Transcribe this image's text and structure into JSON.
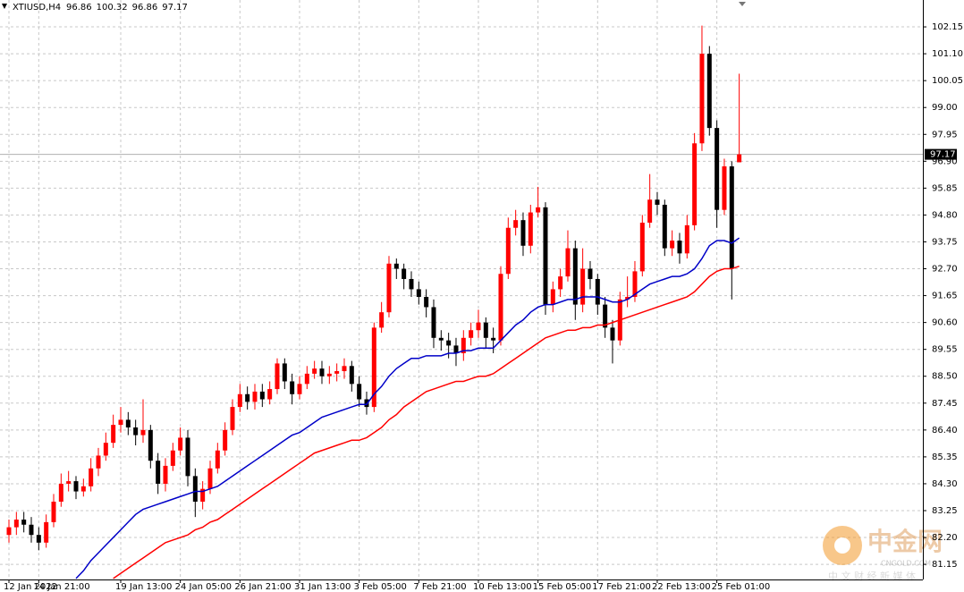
{
  "chart_data": {
    "type": "candlestick",
    "title": "XTIUSD,H4",
    "title_values": [
      96.86,
      100.32,
      96.86,
      97.17
    ],
    "last_price": 97.17,
    "watermark": {
      "brand": "中金网",
      "site": "CNGOLD.COM",
      "slogan": "中 文 财 经 新 媒 体"
    },
    "categories": [
      "12 Jan 2022",
      null,
      null,
      null,
      "14 Jan 21:00",
      null,
      null,
      null,
      null,
      null,
      null,
      null,
      null,
      null,
      null,
      "19 Jan 13:00",
      null,
      null,
      null,
      null,
      null,
      null,
      null,
      "24 Jan 05:00",
      null,
      null,
      null,
      null,
      null,
      null,
      null,
      "26 Jan 21:00",
      null,
      null,
      null,
      null,
      null,
      null,
      null,
      "31 Jan 13:00",
      null,
      null,
      null,
      null,
      null,
      null,
      null,
      "3 Feb 05:00",
      null,
      null,
      null,
      null,
      null,
      null,
      null,
      "7 Feb 21:00",
      null,
      null,
      null,
      null,
      null,
      null,
      null,
      "10 Feb 13:00",
      null,
      null,
      null,
      null,
      null,
      null,
      null,
      "15 Feb 05:00",
      null,
      null,
      null,
      null,
      null,
      null,
      null,
      "17 Feb 21:00",
      null,
      null,
      null,
      null,
      null,
      null,
      null,
      "22 Feb 13:00",
      null,
      null,
      null,
      null,
      null,
      null,
      null,
      "25 Feb 01:00",
      null,
      null,
      null
    ],
    "open": [
      82.3,
      82.6,
      82.9,
      82.7,
      82.3,
      82.0,
      82.8,
      83.6,
      84.3,
      84.4,
      84.0,
      84.2,
      84.9,
      85.4,
      85.9,
      86.6,
      86.8,
      86.5,
      86.2,
      86.4,
      85.2,
      84.3,
      85.0,
      85.6,
      86.1,
      84.6,
      83.6,
      84.1,
      84.9,
      85.6,
      86.4,
      87.3,
      87.8,
      87.5,
      87.9,
      87.6,
      88.0,
      89.0,
      88.3,
      87.8,
      88.2,
      88.6,
      88.8,
      88.5,
      88.6,
      88.7,
      88.9,
      88.2,
      87.6,
      87.3,
      90.4,
      91.0,
      92.9,
      92.7,
      92.3,
      91.9,
      91.6,
      91.2,
      90.0,
      89.9,
      89.7,
      89.4,
      90.0,
      90.3,
      90.6,
      90.0,
      89.9,
      92.5,
      94.3,
      94.6,
      93.6,
      94.9,
      95.1,
      91.3,
      91.9,
      92.4,
      93.5,
      91.3,
      92.7,
      92.3,
      91.3,
      90.4,
      89.9,
      91.5,
      91.6,
      92.6,
      94.5,
      95.4,
      95.2,
      93.5,
      93.8,
      93.3,
      94.4,
      97.6,
      101.1,
      98.2,
      95.0,
      96.7,
      96.86
    ],
    "high": [
      82.9,
      83.2,
      83.2,
      83.0,
      82.6,
      83.1,
      83.9,
      84.7,
      84.8,
      84.6,
      84.5,
      85.3,
      85.7,
      86.3,
      87.0,
      87.3,
      87.1,
      86.8,
      87.6,
      86.6,
      85.5,
      85.3,
      85.9,
      86.5,
      86.4,
      84.9,
      84.4,
      85.2,
      85.9,
      86.7,
      87.6,
      88.2,
      88.1,
      88.2,
      88.2,
      88.3,
      89.2,
      89.2,
      88.6,
      88.5,
      88.9,
      89.1,
      89.1,
      88.9,
      89.0,
      89.2,
      89.1,
      88.5,
      87.9,
      90.6,
      91.4,
      93.2,
      93.1,
      92.9,
      92.6,
      92.2,
      91.9,
      91.5,
      90.3,
      90.2,
      90.0,
      90.3,
      90.6,
      91.1,
      90.8,
      90.4,
      92.8,
      94.7,
      95.0,
      94.9,
      95.2,
      95.9,
      95.3,
      92.2,
      92.7,
      94.2,
      93.8,
      93.5,
      93.0,
      92.5,
      91.6,
      90.7,
      91.8,
      92.4,
      93.0,
      94.8,
      96.4,
      95.7,
      95.4,
      94.2,
      94.1,
      94.8,
      98.0,
      102.2,
      101.4,
      98.5,
      97.0,
      96.9,
      100.32
    ],
    "low": [
      82.0,
      82.3,
      82.4,
      82.0,
      81.7,
      81.8,
      82.6,
      83.4,
      84.0,
      83.7,
      83.8,
      84.0,
      84.6,
      85.2,
      85.7,
      86.3,
      86.2,
      85.8,
      85.9,
      84.9,
      83.9,
      84.0,
      84.8,
      85.4,
      84.2,
      83.0,
      83.3,
      83.9,
      84.7,
      85.4,
      86.2,
      87.1,
      87.2,
      87.2,
      87.3,
      87.4,
      87.8,
      88.0,
      87.4,
      87.6,
      88.0,
      88.4,
      88.2,
      88.2,
      88.3,
      88.4,
      87.9,
      87.3,
      87.0,
      87.1,
      90.2,
      90.8,
      92.3,
      91.9,
      91.6,
      91.3,
      90.8,
      89.6,
      89.5,
      89.2,
      88.9,
      89.1,
      89.7,
      90.0,
      89.6,
      89.4,
      89.7,
      92.3,
      94.0,
      93.2,
      93.3,
      94.7,
      90.9,
      91.0,
      91.6,
      92.2,
      90.7,
      91.0,
      91.9,
      90.9,
      90.0,
      89.0,
      89.7,
      91.2,
      91.4,
      92.4,
      94.3,
      94.8,
      93.2,
      93.2,
      92.9,
      93.1,
      94.2,
      97.3,
      97.9,
      94.3,
      94.8,
      91.5,
      96.86
    ],
    "close": [
      82.6,
      82.9,
      82.7,
      82.3,
      82.0,
      82.8,
      83.6,
      84.3,
      84.4,
      84.0,
      84.2,
      84.9,
      85.4,
      85.9,
      86.6,
      86.8,
      86.5,
      86.2,
      86.4,
      85.2,
      84.3,
      85.0,
      85.6,
      86.1,
      84.6,
      83.6,
      84.1,
      84.9,
      85.6,
      86.4,
      87.3,
      87.8,
      87.5,
      87.9,
      87.6,
      88.0,
      89.0,
      88.3,
      87.8,
      88.2,
      88.6,
      88.8,
      88.5,
      88.6,
      88.7,
      88.9,
      88.2,
      87.6,
      87.3,
      90.4,
      91.0,
      92.9,
      92.7,
      92.3,
      91.9,
      91.6,
      91.2,
      90.0,
      89.9,
      89.7,
      89.4,
      90.0,
      90.3,
      90.6,
      90.0,
      89.9,
      92.5,
      94.3,
      94.6,
      93.6,
      94.9,
      95.1,
      91.3,
      91.9,
      92.4,
      93.5,
      91.3,
      92.7,
      92.3,
      91.3,
      90.4,
      89.9,
      91.5,
      91.6,
      92.6,
      94.5,
      95.4,
      95.2,
      93.5,
      93.8,
      93.3,
      94.4,
      97.6,
      101.1,
      98.2,
      95.0,
      96.7,
      92.7,
      97.17
    ],
    "up_color": "#ff0000",
    "down_color": "#000000",
    "series": [
      {
        "color": "#0000c8",
        "values": [
          null,
          null,
          null,
          null,
          null,
          null,
          null,
          null,
          null,
          80.6,
          80.9,
          81.3,
          81.6,
          81.9,
          82.2,
          82.5,
          82.8,
          83.1,
          83.3,
          83.4,
          83.5,
          83.6,
          83.7,
          83.8,
          83.9,
          84.0,
          84.0,
          84.1,
          84.2,
          84.4,
          84.6,
          84.8,
          85.0,
          85.2,
          85.4,
          85.6,
          85.8,
          86.0,
          86.2,
          86.3,
          86.5,
          86.7,
          86.9,
          87.0,
          87.1,
          87.2,
          87.3,
          87.4,
          87.4,
          87.8,
          88.1,
          88.5,
          88.8,
          89.0,
          89.2,
          89.2,
          89.3,
          89.3,
          89.3,
          89.4,
          89.4,
          89.5,
          89.5,
          89.6,
          89.6,
          89.6,
          89.9,
          90.2,
          90.5,
          90.7,
          91.0,
          91.2,
          91.3,
          91.3,
          91.4,
          91.5,
          91.5,
          91.6,
          91.6,
          91.6,
          91.5,
          91.4,
          91.4,
          91.5,
          91.7,
          91.9,
          92.1,
          92.2,
          92.3,
          92.4,
          92.4,
          92.5,
          92.7,
          93.1,
          93.6,
          93.8,
          93.8,
          93.7,
          93.9
        ]
      },
      {
        "color": "#ff0000",
        "values": [
          null,
          null,
          null,
          null,
          null,
          null,
          null,
          null,
          null,
          null,
          null,
          null,
          null,
          null,
          80.6,
          80.8,
          81.0,
          81.2,
          81.4,
          81.6,
          81.8,
          82.0,
          82.1,
          82.2,
          82.3,
          82.5,
          82.6,
          82.8,
          82.9,
          83.1,
          83.3,
          83.5,
          83.7,
          83.9,
          84.1,
          84.3,
          84.5,
          84.7,
          84.9,
          85.1,
          85.3,
          85.5,
          85.6,
          85.7,
          85.8,
          85.9,
          86.0,
          86.0,
          86.1,
          86.3,
          86.5,
          86.8,
          87.0,
          87.3,
          87.5,
          87.7,
          87.9,
          88.0,
          88.1,
          88.2,
          88.3,
          88.3,
          88.4,
          88.5,
          88.5,
          88.6,
          88.8,
          89.0,
          89.2,
          89.4,
          89.6,
          89.8,
          90.0,
          90.1,
          90.2,
          90.3,
          90.3,
          90.4,
          90.4,
          90.5,
          90.5,
          90.6,
          90.7,
          90.8,
          90.9,
          91.0,
          91.1,
          91.2,
          91.3,
          91.4,
          91.5,
          91.6,
          91.8,
          92.1,
          92.4,
          92.6,
          92.7,
          92.7,
          92.8
        ]
      }
    ],
    "ylim": [
      80.56,
      103.2
    ],
    "yticks": [
      102.15,
      {
        "value": 101.1,
        "label": "101.10"
      },
      100.05,
      {
        "value": 99,
        "label": "99.00"
      },
      97.95,
      {
        "value": 96.9,
        "label": "96.90"
      },
      95.85,
      {
        "value": 94.8,
        "label": "94.80"
      },
      93.75,
      {
        "value": 92.7,
        "label": "92.70"
      },
      91.65,
      {
        "value": 90.6,
        "label": "90.60"
      },
      89.55,
      {
        "value": 88.5,
        "label": "88.50"
      },
      87.45,
      {
        "value": 86.4,
        "label": "86.40"
      },
      85.35,
      {
        "value": 84.3,
        "label": "84.30"
      },
      83.25,
      {
        "value": 82.2,
        "label": "82.20"
      },
      81.15
    ],
    "grid": true
  }
}
